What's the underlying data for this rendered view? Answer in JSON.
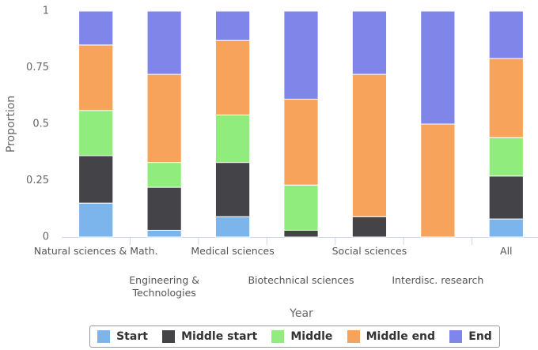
{
  "chart_data": {
    "type": "stacked_bar",
    "categories": [
      "Natural sciences & Math.",
      "Engineering & Technologies",
      "Medical sciences",
      "Biotechnical sciences",
      "Social sciences",
      "Interdisc. research",
      "All"
    ],
    "series": [
      {
        "name": "Start",
        "color": "#7cb5ec",
        "values": [
          0.15,
          0.03,
          0.09,
          0,
          0,
          0,
          0.08
        ]
      },
      {
        "name": "Middle start",
        "color": "#434348",
        "values": [
          0.21,
          0.19,
          0.24,
          0.03,
          0.09,
          0,
          0.19
        ]
      },
      {
        "name": "Middle",
        "color": "#90ed7d",
        "values": [
          0.2,
          0.11,
          0.21,
          0.2,
          0,
          0,
          0.17
        ]
      },
      {
        "name": "Middle end",
        "color": "#f7a35c",
        "values": [
          0.29,
          0.39,
          0.33,
          0.38,
          0.63,
          0.5,
          0.35
        ]
      },
      {
        "name": "End",
        "color": "#8085e9",
        "values": [
          0.15,
          0.28,
          0.13,
          0.39,
          0.28,
          0.5,
          0.21
        ]
      }
    ],
    "x_label": "Year",
    "y_label": "Proportion",
    "ylim": [
      0,
      1
    ],
    "yticks": [
      0,
      0.25,
      0.5,
      0.75,
      1
    ],
    "grid": false,
    "legend": "bottom"
  }
}
